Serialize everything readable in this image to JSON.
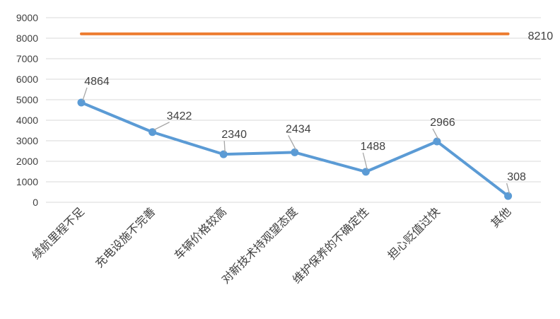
{
  "chart_data": {
    "type": "line",
    "categories": [
      "续航里程不足",
      "充电设施不完善",
      "车辆价格较高",
      "对新技术持观望态度",
      "维护保养的不确定性",
      "担心贬值过快",
      "其他"
    ],
    "series": [
      {
        "values": [
          4864,
          3422,
          2340,
          2434,
          1488,
          2966,
          308
        ],
        "color": "#5b9bd5"
      },
      {
        "values": [
          8210,
          8210,
          8210,
          8210,
          8210,
          8210,
          8210
        ],
        "color": "#ed7d31"
      }
    ],
    "yticks": [
      0,
      1000,
      2000,
      3000,
      4000,
      5000,
      6000,
      7000,
      8000,
      9000
    ],
    "ylim": [
      0,
      9000
    ],
    "grid": true,
    "data_labels": {
      "series0": [
        "4864",
        "3422",
        "2340",
        "2434",
        "1488",
        "2966",
        "308"
      ],
      "series1_end": "8210"
    },
    "title": "",
    "xlabel": "",
    "ylabel": ""
  }
}
